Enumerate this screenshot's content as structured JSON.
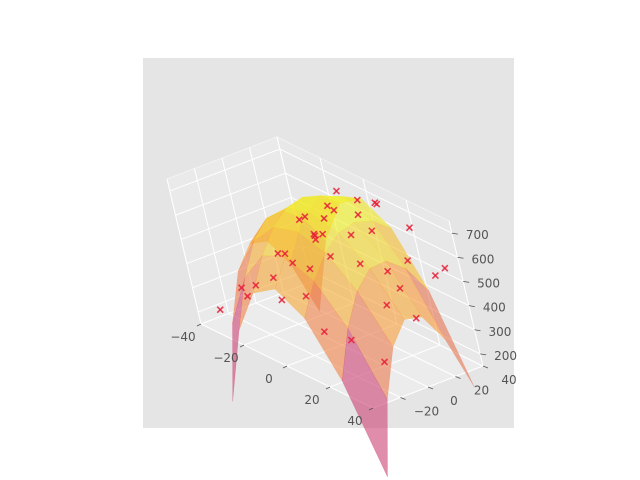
{
  "chart_data": {
    "type": "surface3d",
    "title": "",
    "xlabel": "",
    "ylabel": "",
    "zlabel": "",
    "colormap": "plasma",
    "marker_color": "#e8203a",
    "xlim": [
      -40,
      40
    ],
    "ylim": [
      -40,
      40
    ],
    "zlim": [
      150,
      750
    ],
    "x_ticks": [
      -40,
      -20,
      0,
      20,
      40
    ],
    "y_ticks": [
      -20,
      0,
      20,
      40
    ],
    "z_ticks": [
      200,
      300,
      400,
      500,
      600,
      700
    ],
    "x_tick_labels": [
      "−40",
      "−20",
      "0",
      "20",
      "40"
    ],
    "y_tick_labels": [
      "−20",
      "0",
      "20",
      "40"
    ],
    "z_tick_labels": [
      "200",
      "300",
      "400",
      "500",
      "600",
      "700"
    ],
    "surface": {
      "x": [
        -36,
        -24,
        -12,
        0,
        12,
        24,
        36
      ],
      "y": [
        -36,
        -24,
        -12,
        0,
        12,
        24,
        36
      ],
      "description": "z = 720 - 0.22*x^2 - 0.10*(y-15)^2 - 0.0002*x^2*y^2"
    },
    "scatter_points": [
      [
        -36,
        -30,
        205
      ],
      [
        -30,
        -20,
        300
      ],
      [
        -20,
        -30,
        330
      ],
      [
        -12,
        -20,
        420
      ],
      [
        -4,
        -28,
        380
      ],
      [
        6,
        -24,
        430
      ],
      [
        16,
        -30,
        340
      ],
      [
        26,
        -26,
        340
      ],
      [
        36,
        -20,
        280
      ],
      [
        -34,
        -5,
        260
      ],
      [
        -24,
        2,
        420
      ],
      [
        -14,
        -6,
        480
      ],
      [
        -4,
        4,
        560
      ],
      [
        8,
        -4,
        560
      ],
      [
        18,
        2,
        560
      ],
      [
        30,
        -2,
        450
      ],
      [
        36,
        8,
        400
      ],
      [
        -30,
        18,
        320
      ],
      [
        -20,
        24,
        470
      ],
      [
        -8,
        18,
        600
      ],
      [
        4,
        26,
        650
      ],
      [
        14,
        20,
        640
      ],
      [
        26,
        24,
        560
      ],
      [
        34,
        30,
        520
      ],
      [
        -16,
        36,
        560
      ],
      [
        -4,
        38,
        650
      ],
      [
        8,
        34,
        700
      ],
      [
        20,
        38,
        640
      ],
      [
        32,
        40,
        520
      ],
      [
        -26,
        32,
        420
      ],
      [
        0,
        12,
        700
      ],
      [
        12,
        8,
        640
      ],
      [
        -10,
        8,
        620
      ],
      [
        22,
        14,
        520
      ],
      [
        -18,
        14,
        560
      ],
      [
        2,
        -12,
        500
      ],
      [
        28,
        12,
        480
      ],
      [
        -28,
        40,
        400
      ],
      [
        12,
        30,
        720
      ],
      [
        -6,
        28,
        700
      ]
    ]
  }
}
